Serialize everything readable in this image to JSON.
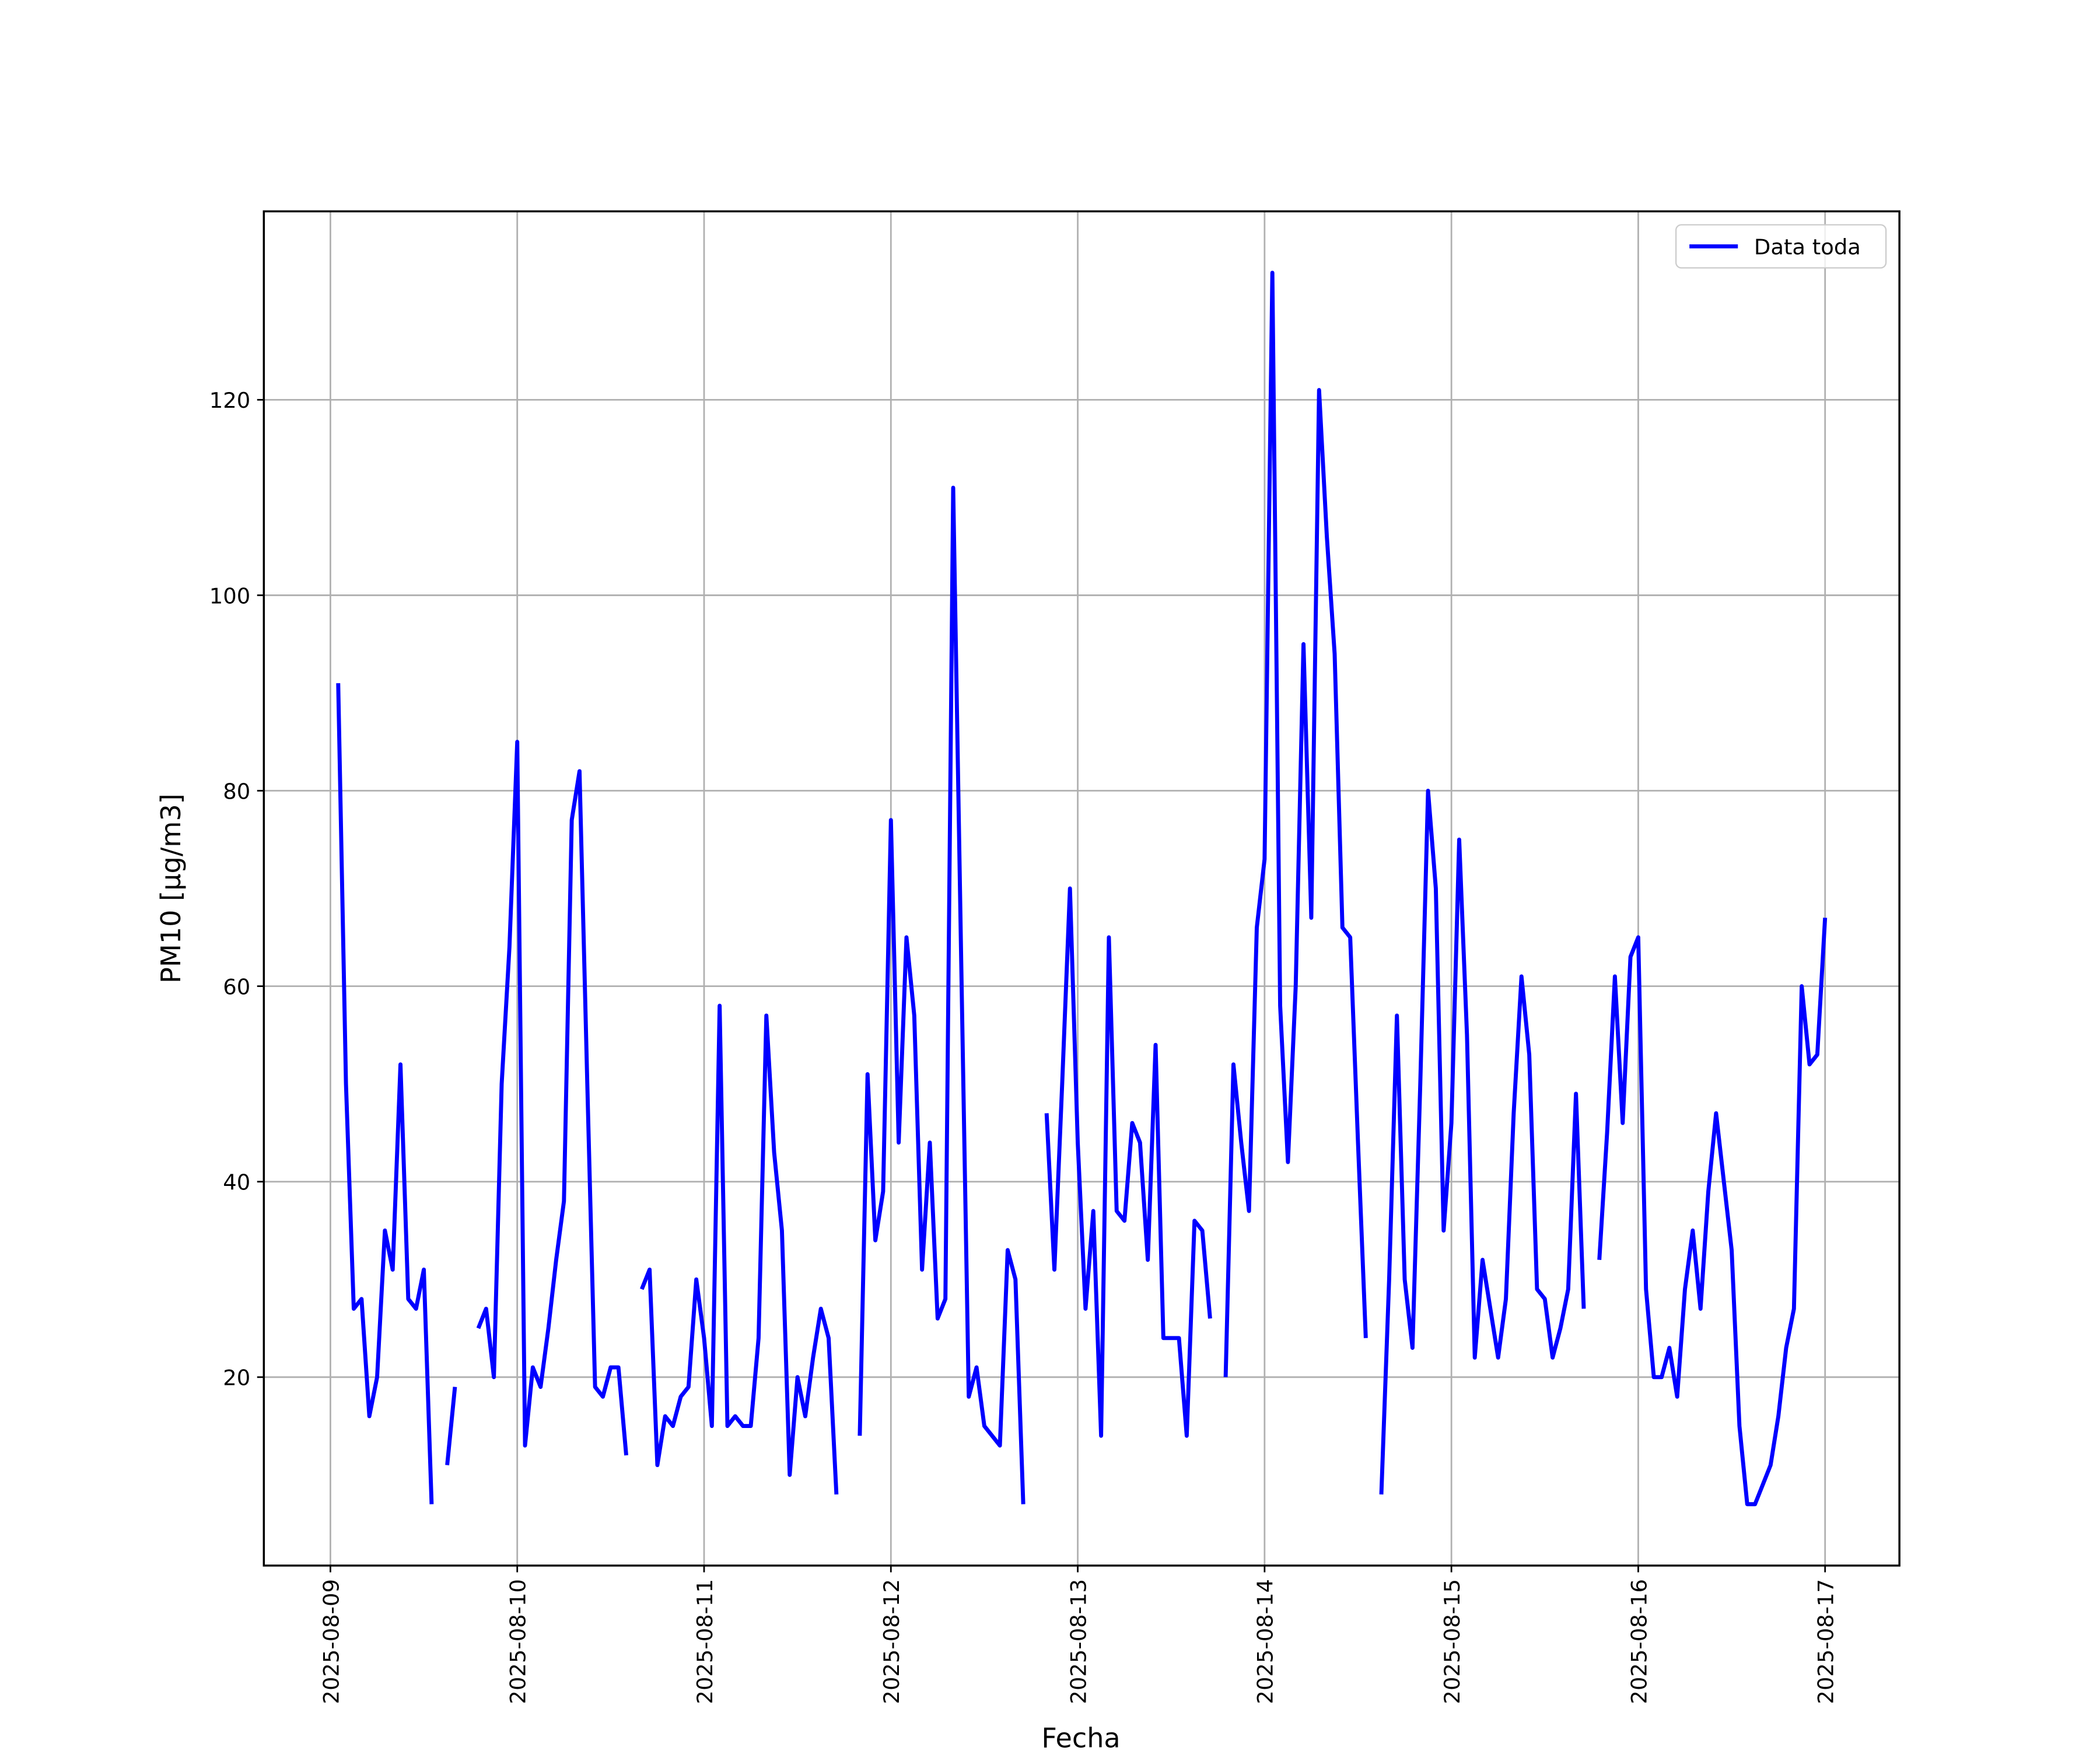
{
  "chart_data": {
    "type": "line",
    "x_label": "Fecha",
    "y_label": "PM10 [μg/m3]",
    "x": [
      "2025-08-09 01:00",
      "2025-08-09 02:00",
      "2025-08-09 03:00",
      "2025-08-09 04:00",
      "2025-08-09 05:00",
      "2025-08-09 06:00",
      "2025-08-09 07:00",
      "2025-08-09 08:00",
      "2025-08-09 09:00",
      "2025-08-09 10:00",
      "2025-08-09 11:00",
      "2025-08-09 12:00",
      "2025-08-09 13:00",
      "2025-08-09 14:00",
      "2025-08-09 15:00",
      "2025-08-09 16:00",
      "2025-08-09 17:00",
      "2025-08-09 18:00",
      "2025-08-09 19:00",
      "2025-08-09 20:00",
      "2025-08-09 21:00",
      "2025-08-09 22:00",
      "2025-08-09 23:00",
      "2025-08-10 00:00",
      "2025-08-10 01:00",
      "2025-08-10 02:00",
      "2025-08-10 03:00",
      "2025-08-10 04:00",
      "2025-08-10 05:00",
      "2025-08-10 06:00",
      "2025-08-10 07:00",
      "2025-08-10 08:00",
      "2025-08-10 09:00",
      "2025-08-10 10:00",
      "2025-08-10 11:00",
      "2025-08-10 12:00",
      "2025-08-10 13:00",
      "2025-08-10 14:00",
      "2025-08-10 15:00",
      "2025-08-10 16:00",
      "2025-08-10 17:00",
      "2025-08-10 18:00",
      "2025-08-10 19:00",
      "2025-08-10 20:00",
      "2025-08-10 21:00",
      "2025-08-10 22:00",
      "2025-08-10 23:00",
      "2025-08-11 00:00",
      "2025-08-11 01:00",
      "2025-08-11 02:00",
      "2025-08-11 03:00",
      "2025-08-11 04:00",
      "2025-08-11 05:00",
      "2025-08-11 06:00",
      "2025-08-11 07:00",
      "2025-08-11 08:00",
      "2025-08-11 09:00",
      "2025-08-11 10:00",
      "2025-08-11 11:00",
      "2025-08-11 12:00",
      "2025-08-11 13:00",
      "2025-08-11 14:00",
      "2025-08-11 15:00",
      "2025-08-11 16:00",
      "2025-08-11 17:00",
      "2025-08-11 18:00",
      "2025-08-11 19:00",
      "2025-08-11 20:00",
      "2025-08-11 21:00",
      "2025-08-11 22:00",
      "2025-08-11 23:00",
      "2025-08-12 00:00",
      "2025-08-12 01:00",
      "2025-08-12 02:00",
      "2025-08-12 03:00",
      "2025-08-12 04:00",
      "2025-08-12 05:00",
      "2025-08-12 06:00",
      "2025-08-12 07:00",
      "2025-08-12 08:00",
      "2025-08-12 09:00",
      "2025-08-12 10:00",
      "2025-08-12 11:00",
      "2025-08-12 12:00",
      "2025-08-12 13:00",
      "2025-08-12 14:00",
      "2025-08-12 15:00",
      "2025-08-12 16:00",
      "2025-08-12 17:00",
      "2025-08-12 18:00",
      "2025-08-12 19:00",
      "2025-08-12 20:00",
      "2025-08-12 21:00",
      "2025-08-12 22:00",
      "2025-08-12 23:00",
      "2025-08-13 00:00",
      "2025-08-13 01:00",
      "2025-08-13 02:00",
      "2025-08-13 03:00",
      "2025-08-13 04:00",
      "2025-08-13 05:00",
      "2025-08-13 06:00",
      "2025-08-13 07:00",
      "2025-08-13 08:00",
      "2025-08-13 09:00",
      "2025-08-13 10:00",
      "2025-08-13 11:00",
      "2025-08-13 12:00",
      "2025-08-13 13:00",
      "2025-08-13 14:00",
      "2025-08-13 15:00",
      "2025-08-13 16:00",
      "2025-08-13 17:00",
      "2025-08-13 18:00",
      "2025-08-13 19:00",
      "2025-08-13 20:00",
      "2025-08-13 21:00",
      "2025-08-13 22:00",
      "2025-08-13 23:00",
      "2025-08-14 00:00",
      "2025-08-14 01:00",
      "2025-08-14 02:00",
      "2025-08-14 03:00",
      "2025-08-14 04:00",
      "2025-08-14 05:00",
      "2025-08-14 06:00",
      "2025-08-14 07:00",
      "2025-08-14 08:00",
      "2025-08-14 09:00",
      "2025-08-14 10:00",
      "2025-08-14 11:00",
      "2025-08-14 12:00",
      "2025-08-14 13:00",
      "2025-08-14 14:00",
      "2025-08-14 15:00",
      "2025-08-14 16:00",
      "2025-08-14 17:00",
      "2025-08-14 18:00",
      "2025-08-14 19:00",
      "2025-08-14 20:00",
      "2025-08-14 21:00",
      "2025-08-14 22:00",
      "2025-08-14 23:00",
      "2025-08-15 00:00",
      "2025-08-15 01:00",
      "2025-08-15 02:00",
      "2025-08-15 03:00",
      "2025-08-15 04:00",
      "2025-08-15 05:00",
      "2025-08-15 06:00",
      "2025-08-15 07:00",
      "2025-08-15 08:00",
      "2025-08-15 09:00",
      "2025-08-15 10:00",
      "2025-08-15 11:00",
      "2025-08-15 12:00",
      "2025-08-15 13:00",
      "2025-08-15 14:00",
      "2025-08-15 15:00",
      "2025-08-15 16:00",
      "2025-08-15 17:00",
      "2025-08-15 18:00",
      "2025-08-15 19:00",
      "2025-08-15 20:00",
      "2025-08-15 21:00",
      "2025-08-15 22:00",
      "2025-08-15 23:00",
      "2025-08-16 00:00",
      "2025-08-16 01:00",
      "2025-08-16 02:00",
      "2025-08-16 03:00",
      "2025-08-16 04:00",
      "2025-08-16 05:00",
      "2025-08-16 06:00",
      "2025-08-16 07:00",
      "2025-08-16 08:00",
      "2025-08-16 09:00",
      "2025-08-16 10:00",
      "2025-08-16 11:00",
      "2025-08-16 12:00",
      "2025-08-16 13:00",
      "2025-08-16 14:00",
      "2025-08-16 15:00",
      "2025-08-16 16:00",
      "2025-08-16 17:00",
      "2025-08-16 18:00",
      "2025-08-16 19:00",
      "2025-08-16 20:00",
      "2025-08-16 21:00",
      "2025-08-16 22:00",
      "2025-08-16 23:00",
      "2025-08-17 00:00"
    ],
    "series": [
      {
        "name": "Data toda",
        "color": "#0000ff",
        "values": [
          91,
          50,
          27,
          28,
          16,
          20,
          35,
          31,
          52,
          28,
          27,
          31,
          7,
          null,
          11,
          19,
          null,
          null,
          25,
          27,
          20,
          50,
          64,
          85,
          13,
          21,
          19,
          25,
          32,
          38,
          77,
          82,
          50,
          19,
          18,
          21,
          21,
          12,
          null,
          29,
          31,
          11,
          16,
          15,
          18,
          19,
          30,
          24,
          15,
          58,
          15,
          16,
          15,
          15,
          24,
          57,
          43,
          35,
          10,
          20,
          16,
          22,
          27,
          24,
          8,
          null,
          null,
          14,
          51,
          34,
          39,
          77,
          44,
          65,
          57,
          31,
          44,
          26,
          28,
          111,
          64,
          18,
          21,
          15,
          14,
          13,
          33,
          30,
          7,
          null,
          null,
          47,
          31,
          50,
          70,
          44,
          27,
          37,
          14,
          65,
          37,
          36,
          46,
          44,
          32,
          54,
          24,
          24,
          24,
          14,
          36,
          35,
          26,
          null,
          20,
          52,
          44,
          37,
          66,
          73,
          133,
          58,
          42,
          60,
          95,
          67,
          121,
          106,
          94,
          66,
          65,
          44,
          24,
          null,
          8,
          30,
          57,
          30,
          23,
          50,
          80,
          70,
          35,
          46,
          75,
          55,
          22,
          32,
          27,
          22,
          28,
          47,
          61,
          53,
          29,
          28,
          22,
          25,
          29,
          49,
          27,
          null,
          32,
          45,
          61,
          46,
          63,
          65,
          29,
          20,
          20,
          23,
          18,
          29,
          35,
          27,
          39,
          47,
          40,
          33,
          15,
          7,
          7,
          9,
          11,
          16,
          23,
          27,
          60,
          52,
          53,
          67
        ]
      }
    ],
    "xlim": [
      "2025-08-08 15:27",
      "2025-08-17 09:33"
    ],
    "xticks": [
      "2025-08-09",
      "2025-08-10",
      "2025-08-11",
      "2025-08-12",
      "2025-08-13",
      "2025-08-14",
      "2025-08-15",
      "2025-08-16",
      "2025-08-17"
    ],
    "ylim": [
      0.72,
      139.28
    ],
    "yticks": [
      20,
      40,
      60,
      80,
      100,
      120
    ],
    "grid": true,
    "legend": "upper-right"
  }
}
